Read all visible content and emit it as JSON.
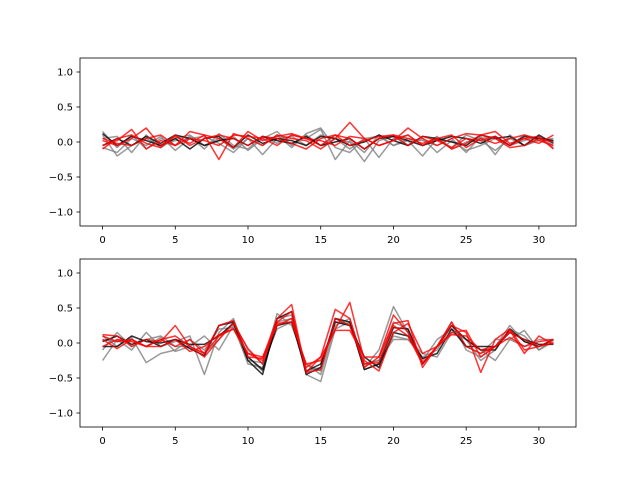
{
  "chart_data": [
    {
      "type": "line",
      "ylim": [
        -1.2,
        1.2
      ],
      "xlim": [
        -1.55,
        32.55
      ],
      "xticks": [
        0,
        5,
        10,
        15,
        20,
        25,
        30
      ],
      "xtick_labels": [
        "0",
        "5",
        "10",
        "15",
        "20",
        "25",
        "30"
      ],
      "yticks": [
        -1.0,
        -0.5,
        0.0,
        0.5,
        1.0
      ],
      "ytick_labels": [
        "−1.0",
        "−0.5",
        "0.0",
        "0.5",
        "1.0"
      ],
      "grid": false,
      "series": [
        {
          "color": "#808080",
          "values": [
            0.15,
            -0.08,
            0.1,
            -0.1,
            0.05,
            -0.05,
            0.08,
            -0.1,
            0.12,
            -0.05,
            -0.1,
            0.08,
            -0.02,
            0.1,
            0.05,
            0.18,
            -0.25,
            0.02,
            -0.15,
            0.1,
            -0.05,
            0.02,
            -0.2,
            0.05,
            -0.08,
            0.1,
            0.02,
            -0.12,
            0.05,
            -0.05,
            0.02,
            0.05
          ]
        },
        {
          "color": "#808080",
          "values": [
            -0.08,
            -0.15,
            0.05,
            -0.05,
            0.08,
            -0.12,
            0.05,
            0.08,
            -0.02,
            -0.15,
            0.05,
            -0.05,
            0.1,
            -0.08,
            0.12,
            0.2,
            -0.08,
            -0.15,
            0.05,
            -0.22,
            0.05,
            0.1,
            -0.05,
            0.08,
            -0.1,
            0.0,
            0.05,
            0.08,
            -0.05,
            0.1,
            0.05,
            -0.08
          ]
        },
        {
          "color": "#808080",
          "values": [
            0.1,
            -0.2,
            -0.05,
            0.05,
            -0.05,
            0.02,
            0.05,
            -0.05,
            0.05,
            -0.1,
            0.05,
            -0.18,
            0.05,
            0.08,
            -0.05,
            0.1,
            0.05,
            0.0,
            -0.28,
            0.02,
            0.08,
            -0.05,
            0.05,
            -0.15,
            0.02,
            -0.12,
            -0.05,
            0.05,
            -0.05,
            0.02,
            0.08,
            -0.05
          ]
        },
        {
          "color": "#808080",
          "values": [
            0.05,
            0.08,
            -0.15,
            0.1,
            -0.08,
            0.05,
            0.1,
            -0.05,
            0.02,
            0.08,
            -0.12,
            0.05,
            0.15,
            -0.05,
            0.1,
            -0.05,
            0.05,
            -0.1,
            0.05,
            0.08,
            -0.05,
            0.05,
            0.02,
            -0.05,
            0.05,
            -0.15,
            0.08,
            -0.18,
            0.1,
            -0.05,
            0.05,
            0.02
          ]
        },
        {
          "color": "#000000",
          "values": [
            0.12,
            -0.05,
            0.08,
            0.02,
            -0.05,
            0.05,
            -0.1,
            0.05,
            0.08,
            -0.08,
            0.1,
            -0.02,
            0.05,
            0.02,
            -0.05,
            0.08,
            0.05,
            -0.05,
            0.0,
            0.1,
            0.02,
            -0.05,
            0.08,
            0.05,
            0.0,
            -0.05,
            0.1,
            0.05,
            0.08,
            -0.05,
            0.1,
            -0.02
          ]
        },
        {
          "color": "#000000",
          "values": [
            -0.05,
            0.05,
            -0.05,
            0.08,
            -0.02,
            0.1,
            0.05,
            -0.05,
            0.02,
            0.05,
            -0.05,
            0.08,
            0.02,
            -0.02,
            0.08,
            -0.05,
            0.0,
            0.05,
            -0.1,
            0.05,
            0.08,
            0.02,
            -0.05,
            0.02,
            0.08,
            0.05,
            -0.02,
            0.08,
            -0.05,
            0.08,
            0.05,
            0.02
          ]
        },
        {
          "color": "#ff0000",
          "values": [
            -0.05,
            0.02,
            0.18,
            -0.1,
            0.02,
            -0.05,
            0.15,
            0.1,
            -0.25,
            0.12,
            0.05,
            -0.05,
            0.1,
            0.05,
            0.02,
            -0.1,
            0.05,
            0.28,
            0.05,
            -0.05,
            0.02,
            0.2,
            0.05,
            -0.05,
            0.05,
            0.12,
            0.1,
            0.15,
            -0.02,
            0.05,
            0.08,
            -0.1
          ]
        },
        {
          "color": "#ff0000",
          "values": [
            0.02,
            -0.05,
            0.05,
            0.2,
            -0.05,
            0.08,
            -0.02,
            0.1,
            0.05,
            -0.08,
            0.15,
            0.02,
            0.08,
            0.12,
            0.05,
            -0.05,
            0.1,
            0.05,
            -0.1,
            0.05,
            0.1,
            -0.05,
            0.08,
            0.02,
            -0.08,
            0.05,
            0.02,
            0.08,
            -0.05,
            0.05,
            -0.02,
            0.1
          ]
        },
        {
          "color": "#ff0000",
          "values": [
            -0.1,
            0.05,
            0.1,
            -0.02,
            -0.08,
            0.1,
            -0.05,
            0.05,
            0.1,
            0.05,
            -0.05,
            0.08,
            0.05,
            -0.02,
            -0.1,
            0.05,
            0.1,
            -0.05,
            0.02,
            0.08,
            0.1,
            0.05,
            -0.02,
            0.05,
            0.1,
            -0.08,
            0.05,
            -0.02,
            0.05,
            0.1,
            0.02,
            -0.05
          ]
        },
        {
          "color": "#ff0000",
          "values": [
            0.05,
            -0.02,
            -0.05,
            0.05,
            0.1,
            -0.05,
            0.05,
            0.02,
            -0.05,
            0.1,
            0.08,
            0.05,
            -0.05,
            0.1,
            0.05,
            0.02,
            -0.05,
            0.08,
            0.05,
            -0.05,
            0.02,
            0.1,
            -0.05,
            0.05,
            -0.1,
            -0.02,
            0.1,
            0.05,
            -0.08,
            -0.05,
            0.05,
            0.0
          ]
        }
      ]
    },
    {
      "type": "line",
      "ylim": [
        -1.2,
        1.2
      ],
      "xlim": [
        -1.55,
        32.55
      ],
      "xticks": [
        0,
        5,
        10,
        15,
        20,
        25,
        30
      ],
      "xtick_labels": [
        "0",
        "5",
        "10",
        "15",
        "20",
        "25",
        "30"
      ],
      "yticks": [
        -1.0,
        -0.5,
        0.0,
        0.5,
        1.0
      ],
      "ytick_labels": [
        "−1.0",
        "−0.5",
        "0.0",
        "0.5",
        "1.0"
      ],
      "grid": false,
      "series": [
        {
          "color": "#808080",
          "values": [
            -0.25,
            0.05,
            -0.1,
            0.15,
            -0.05,
            0.02,
            0.1,
            -0.45,
            0.15,
            0.35,
            -0.2,
            -0.4,
            0.3,
            0.35,
            -0.45,
            -0.55,
            0.2,
            0.3,
            -0.35,
            -0.1,
            0.52,
            0.15,
            -0.3,
            -0.05,
            0.3,
            -0.1,
            -0.2,
            -0.05,
            0.25,
            0.02,
            -0.05,
            0.05
          ]
        },
        {
          "color": "#808080",
          "values": [
            -0.1,
            0.15,
            -0.05,
            0.05,
            0.1,
            -0.05,
            -0.05,
            0.1,
            -0.1,
            0.25,
            -0.3,
            -0.35,
            0.42,
            0.25,
            -0.3,
            -0.4,
            0.35,
            0.25,
            -0.3,
            -0.25,
            0.3,
            0.2,
            -0.25,
            0.05,
            0.2,
            0.05,
            -0.25,
            -0.1,
            0.2,
            0.1,
            -0.1,
            0.05
          ]
        },
        {
          "color": "#808080",
          "values": [
            0.1,
            -0.05,
            0.08,
            -0.28,
            -0.15,
            -0.1,
            0.05,
            -0.1,
            0.2,
            0.22,
            -0.25,
            -0.28,
            0.35,
            0.4,
            -0.4,
            -0.35,
            0.3,
            0.28,
            -0.38,
            -0.3,
            0.1,
            0.05,
            -0.15,
            -0.2,
            0.15,
            0.05,
            -0.1,
            -0.25,
            0.05,
            0.18,
            -0.1,
            0.02
          ]
        },
        {
          "color": "#808080",
          "values": [
            0.05,
            0.02,
            0.05,
            -0.05,
            0.08,
            -0.12,
            -0.05,
            -0.15,
            0.05,
            0.3,
            -0.1,
            -0.3,
            0.2,
            0.3,
            -0.3,
            -0.45,
            0.25,
            0.35,
            -0.3,
            -0.25,
            0.05,
            0.05,
            -0.2,
            -0.1,
            0.25,
            -0.05,
            -0.15,
            0.05,
            0.05,
            -0.05,
            0.05,
            0.05
          ]
        },
        {
          "color": "#000000",
          "values": [
            0.02,
            0.1,
            -0.02,
            0.05,
            -0.05,
            0.05,
            -0.08,
            -0.18,
            0.25,
            0.3,
            -0.25,
            -0.45,
            0.35,
            0.45,
            -0.45,
            -0.35,
            0.35,
            0.3,
            -0.38,
            -0.3,
            0.22,
            0.2,
            -0.3,
            -0.05,
            0.25,
            0.05,
            -0.1,
            -0.1,
            0.2,
            0.02,
            -0.05,
            0.05
          ]
        },
        {
          "color": "#000000",
          "values": [
            -0.05,
            -0.05,
            0.1,
            0.02,
            0.0,
            0.05,
            -0.02,
            -0.02,
            0.1,
            0.28,
            -0.2,
            -0.38,
            0.25,
            0.3,
            -0.4,
            -0.3,
            0.3,
            0.25,
            -0.2,
            -0.35,
            0.15,
            0.1,
            -0.22,
            -0.15,
            0.2,
            -0.05,
            -0.05,
            -0.05,
            0.15,
            0.05,
            -0.02,
            -0.02
          ]
        },
        {
          "color": "#ff0000",
          "values": [
            0.12,
            0.1,
            -0.05,
            0.05,
            0.02,
            0.25,
            -0.05,
            -0.15,
            0.25,
            0.32,
            -0.2,
            -0.22,
            0.35,
            0.55,
            -0.42,
            -0.2,
            0.48,
            0.35,
            -0.35,
            -0.2,
            0.28,
            0.32,
            -0.35,
            -0.05,
            0.25,
            0.15,
            -0.42,
            0.05,
            0.2,
            -0.1,
            -0.05,
            0.05
          ]
        },
        {
          "color": "#ff0000",
          "values": [
            0.05,
            -0.08,
            0.05,
            -0.05,
            0.05,
            0.1,
            -0.05,
            -0.2,
            0.05,
            0.28,
            -0.08,
            -0.3,
            0.3,
            0.45,
            -0.42,
            -0.38,
            0.35,
            0.25,
            -0.3,
            -0.28,
            0.25,
            0.1,
            -0.3,
            -0.05,
            0.15,
            0.18,
            -0.2,
            -0.05,
            0.18,
            -0.15,
            0.1,
            -0.02
          ]
        },
        {
          "color": "#ff0000",
          "values": [
            -0.05,
            0.05,
            0.02,
            -0.05,
            0.05,
            -0.05,
            0.05,
            -0.15,
            0.1,
            0.2,
            -0.15,
            -0.25,
            0.28,
            0.3,
            -0.3,
            -0.25,
            0.2,
            0.58,
            -0.25,
            -0.4,
            0.15,
            0.28,
            -0.15,
            -0.05,
            0.3,
            -0.05,
            -0.15,
            -0.05,
            0.15,
            0.05,
            -0.05,
            0.0
          ]
        },
        {
          "color": "#ff0000",
          "values": [
            0.1,
            0.02,
            0.05,
            -0.05,
            -0.05,
            0.05,
            -0.12,
            -0.05,
            0.12,
            0.2,
            -0.15,
            -0.2,
            0.25,
            0.35,
            -0.35,
            -0.2,
            0.18,
            0.18,
            -0.2,
            -0.2,
            0.4,
            0.15,
            -0.28,
            -0.05,
            0.12,
            0.1,
            -0.1,
            -0.05,
            0.08,
            -0.05,
            0.02,
            0.05
          ]
        }
      ]
    }
  ]
}
